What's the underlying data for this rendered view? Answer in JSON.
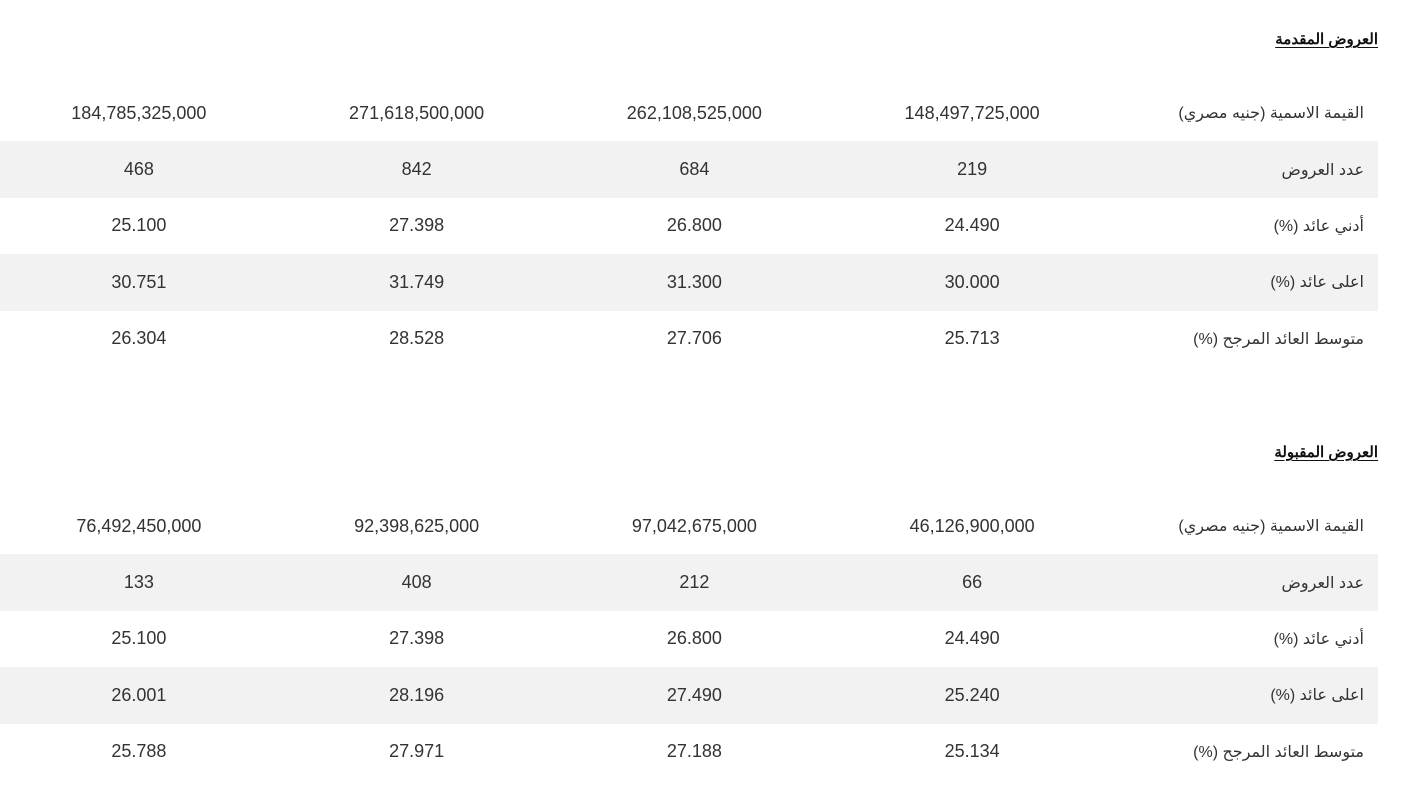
{
  "sections": [
    {
      "title": "العروض المقدمة",
      "rows": [
        {
          "label": "القيمة الاسمية (جنيه مصري)",
          "values": [
            "184,785,325,000",
            "271,618,500,000",
            "262,108,525,000",
            "148,497,725,000"
          ]
        },
        {
          "label": "عدد العروض",
          "values": [
            "468",
            "842",
            "684",
            "219"
          ]
        },
        {
          "label": "أدني عائد (%)",
          "values": [
            "25.100",
            "27.398",
            "26.800",
            "24.490"
          ]
        },
        {
          "label": "اعلى عائد (%)",
          "values": [
            "30.751",
            "31.749",
            "31.300",
            "30.000"
          ]
        },
        {
          "label": "متوسط العائد المرجح (%)",
          "values": [
            "26.304",
            "28.528",
            "27.706",
            "25.713"
          ]
        }
      ]
    },
    {
      "title": "العروض المقبولة",
      "rows": [
        {
          "label": "القيمة الاسمية (جنيه مصري)",
          "values": [
            "76,492,450,000",
            "92,398,625,000",
            "97,042,675,000",
            "46,126,900,000"
          ]
        },
        {
          "label": "عدد العروض",
          "values": [
            "133",
            "408",
            "212",
            "66"
          ]
        },
        {
          "label": "أدني عائد (%)",
          "values": [
            "25.100",
            "27.398",
            "26.800",
            "24.490"
          ]
        },
        {
          "label": "اعلى عائد (%)",
          "values": [
            "26.001",
            "28.196",
            "27.490",
            "25.240"
          ]
        },
        {
          "label": "متوسط العائد المرجح (%)",
          "values": [
            "25.788",
            "27.971",
            "27.188",
            "25.134"
          ]
        }
      ]
    }
  ],
  "colors": {
    "stripe": "#f2f2f3",
    "text": "#333333",
    "title": "#111111"
  }
}
